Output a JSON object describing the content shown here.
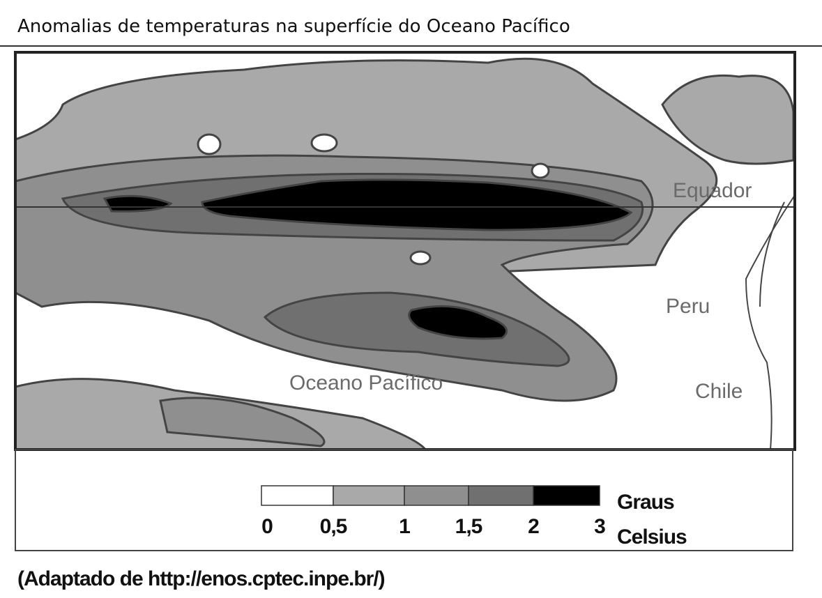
{
  "header": {
    "title": "Anomalias de temperaturas na superfície do Oceano Pacífico"
  },
  "map": {
    "labels": {
      "equator": "Equador",
      "peru": "Peru",
      "chile": "Chile",
      "ocean": "Oceano Pacífico"
    }
  },
  "legend": {
    "labels": [
      "0",
      "0,5",
      "1",
      "1,5",
      "2",
      "3"
    ],
    "colors": [
      "#ffffff",
      "#a9a9a9",
      "#8f8f8f",
      "#707070",
      "#000000"
    ],
    "unit": [
      "Graus",
      "Celsius"
    ]
  },
  "source": "(Adaptado de http://enos.cptec.inpe.br/)"
}
